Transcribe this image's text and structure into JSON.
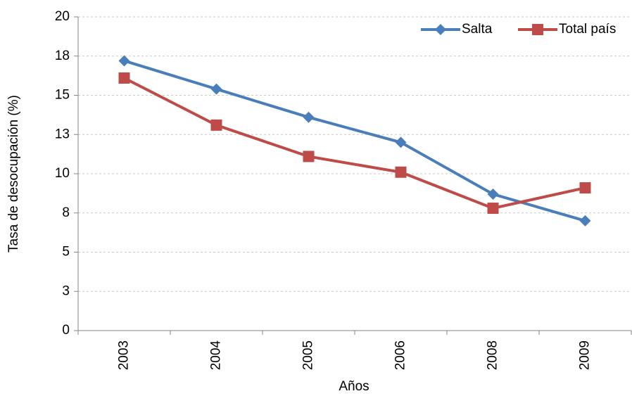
{
  "chart_data": {
    "type": "line",
    "x_label": "Años",
    "y_label": "Tasa de desocupación (%)",
    "categories": [
      "2003",
      "2004",
      "2005",
      "2006",
      "2008",
      "2009"
    ],
    "series": [
      {
        "name": "Salta",
        "color": "#4a7ebb",
        "marker": "diamond",
        "values": [
          17.2,
          15.4,
          13.6,
          12.0,
          8.7,
          7.0
        ]
      },
      {
        "name": "Total país",
        "color": "#be4b48",
        "marker": "square",
        "values": [
          16.1,
          13.1,
          11.1,
          10.1,
          7.8,
          9.1
        ]
      }
    ],
    "ylim": [
      0,
      20
    ],
    "yticks": [
      0,
      {
        "value": 2.5,
        "label": "3"
      },
      5,
      {
        "value": 7.5,
        "label": "8"
      },
      10,
      {
        "value": 12.5,
        "label": "13"
      },
      15,
      {
        "value": 17.5,
        "label": "18"
      },
      20
    ],
    "grid": true,
    "legend": "top-right"
  }
}
